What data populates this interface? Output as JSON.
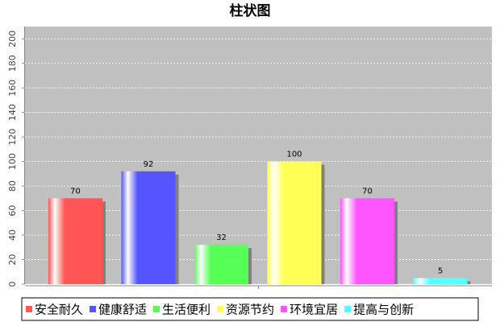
{
  "chart_data": {
    "type": "bar",
    "title": "柱状图",
    "categories": [
      "安全耐久",
      "健康舒适",
      "生活便利",
      "资源节约",
      "环境宜居",
      "提高与创新"
    ],
    "values": [
      70,
      92,
      32,
      100,
      70,
      5
    ],
    "colors": [
      "#ff5555",
      "#5555ff",
      "#55ff55",
      "#ffff55",
      "#ff55ff",
      "#55ffff"
    ],
    "ylim": [
      0,
      210
    ],
    "yticks": [
      0,
      20,
      40,
      60,
      80,
      100,
      120,
      140,
      160,
      180,
      200
    ],
    "grid": true
  }
}
